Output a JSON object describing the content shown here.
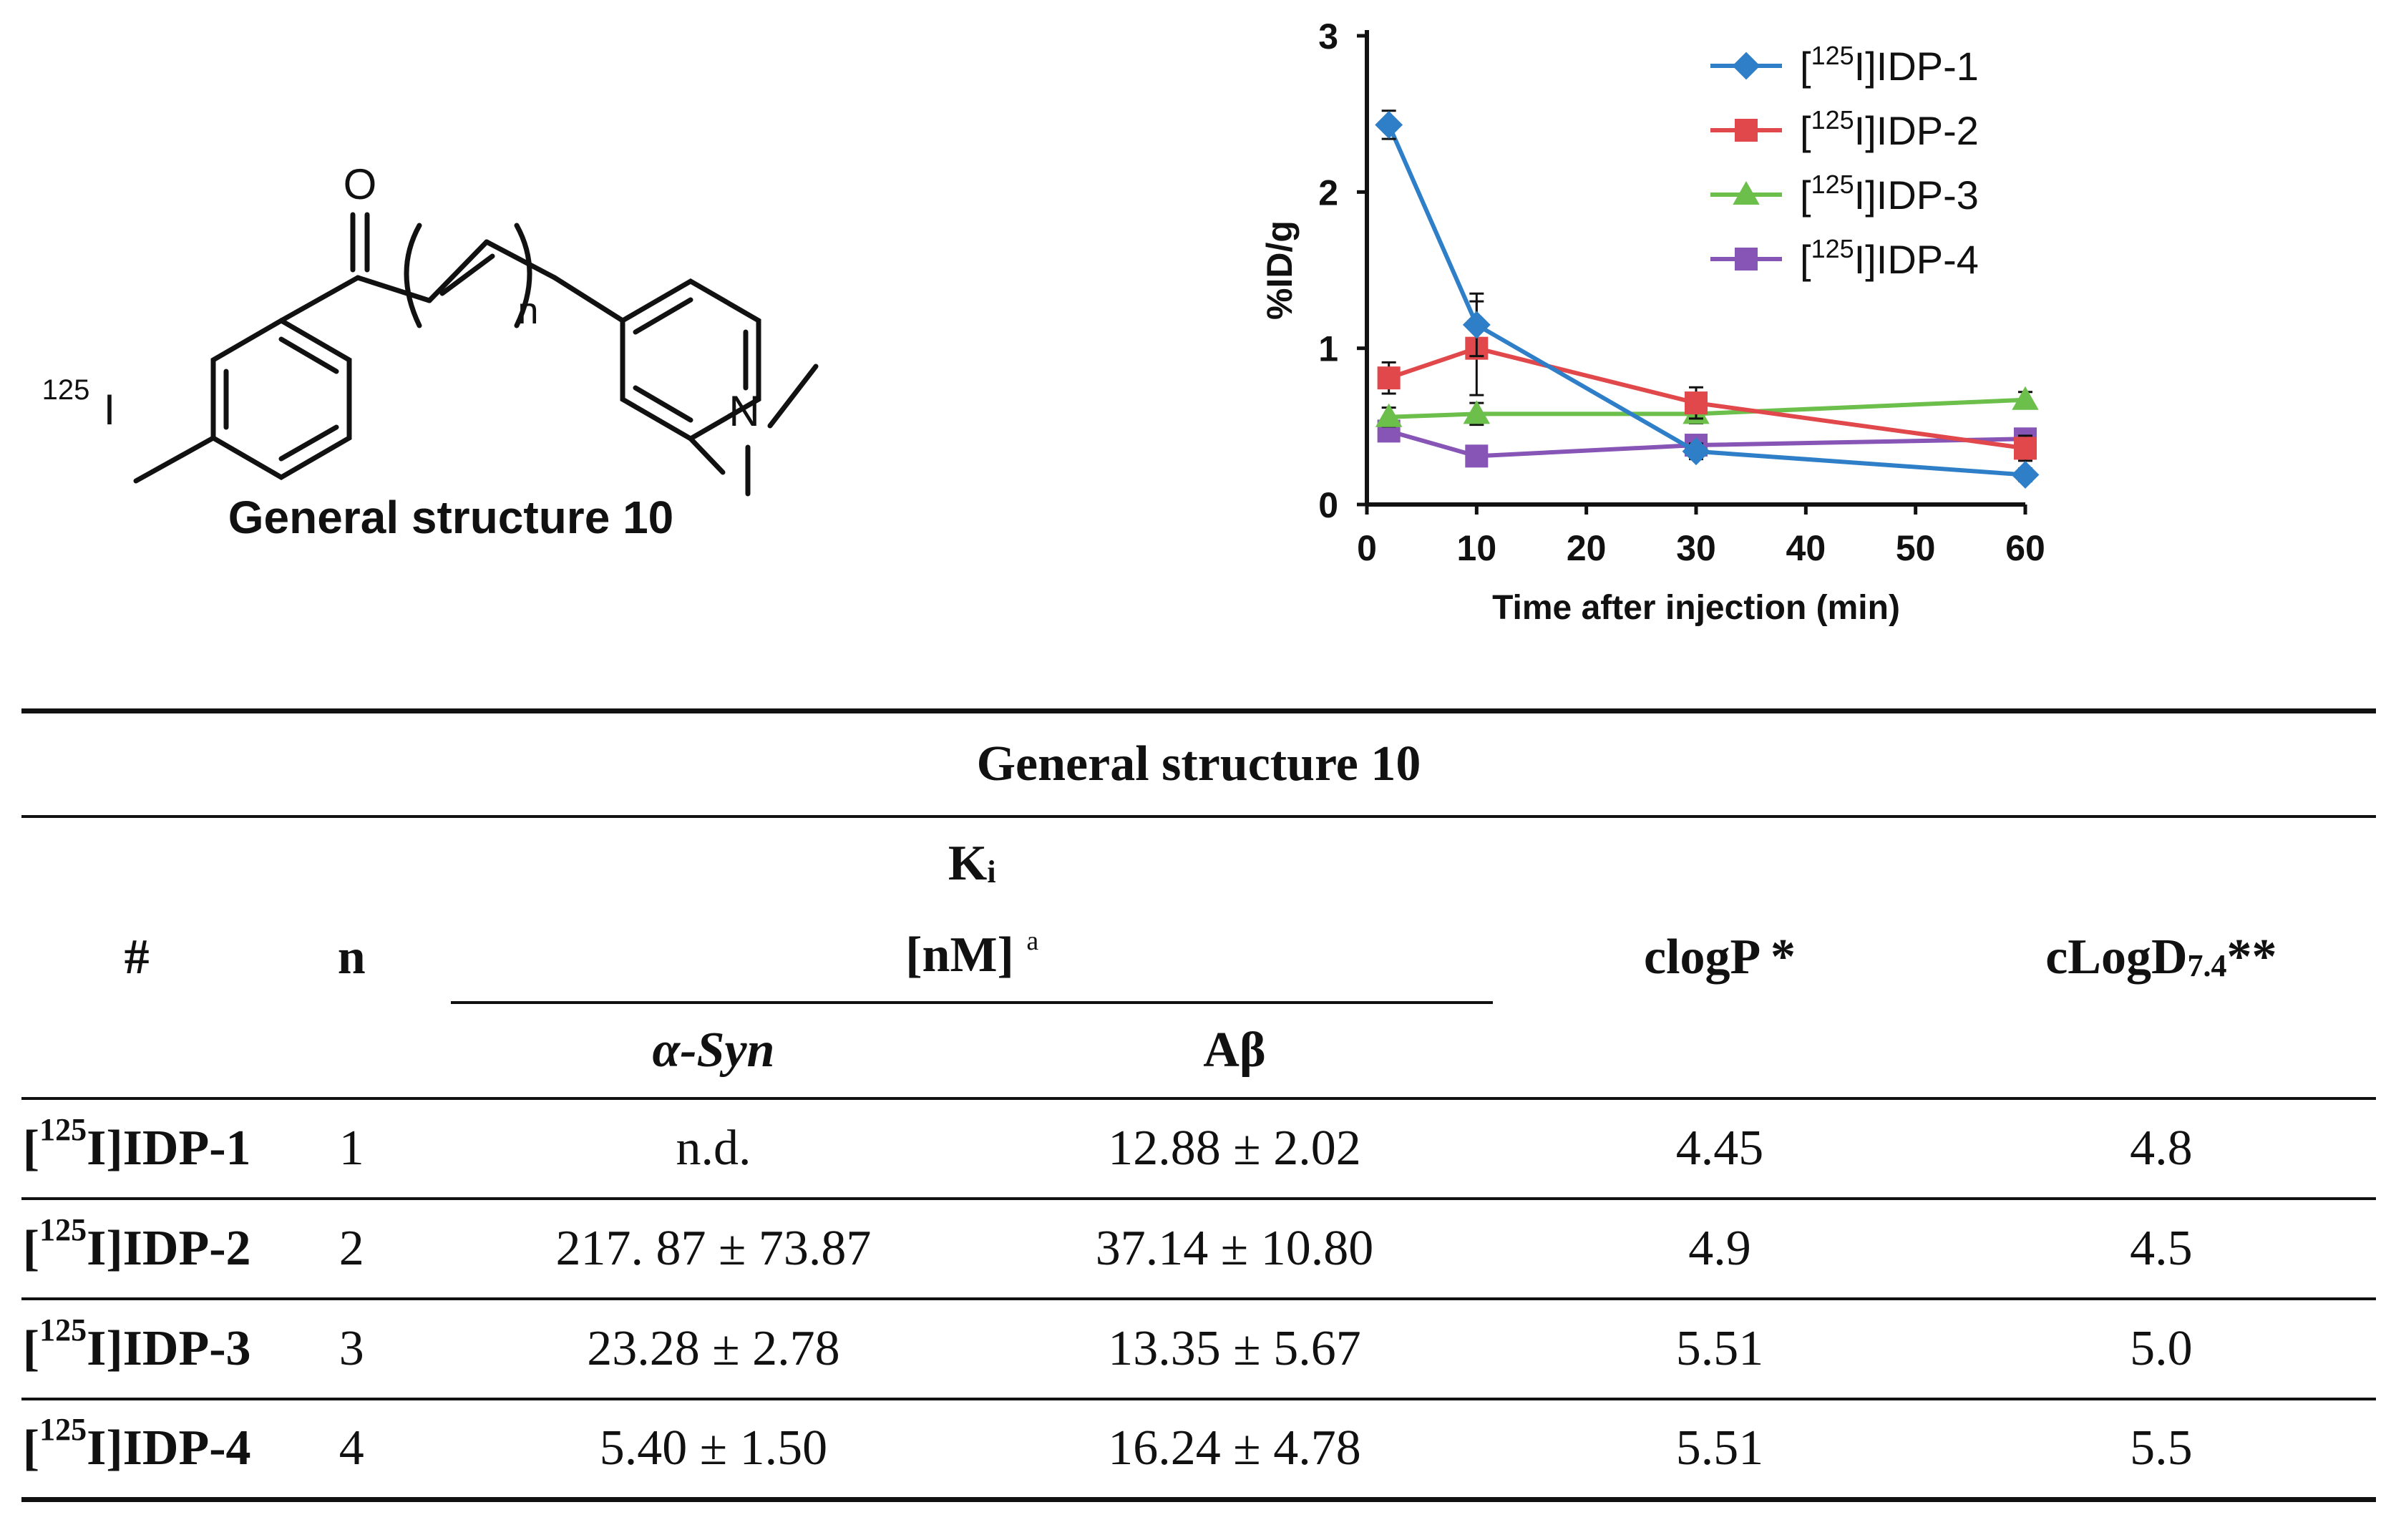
{
  "structure": {
    "caption": "General structure 10",
    "atoms": {
      "oxygen": "O",
      "nitrogen": "N",
      "iodine_mass": "125",
      "iodine": "I",
      "repeat": "n"
    }
  },
  "chart_data": {
    "type": "line",
    "ylabel": "%ID/g",
    "xlabel": "Time after injection (min)",
    "xlim": [
      0,
      60
    ],
    "ylim": [
      0,
      3
    ],
    "xticks": [
      0,
      10,
      20,
      30,
      40,
      50,
      60
    ],
    "yticks": [
      0,
      1,
      2,
      3
    ],
    "legend_position": "top-right",
    "x": [
      2,
      10,
      30,
      60
    ],
    "series": [
      {
        "name_prefix": "[",
        "name_sup": "125",
        "name_suffix": "I]IDP-1",
        "color": "#2F7FC8",
        "marker": "diamond",
        "values": [
          2.43,
          1.15,
          0.34,
          0.19
        ],
        "errors": [
          0.09,
          0.2,
          0.05,
          0.04
        ]
      },
      {
        "name_prefix": "[",
        "name_sup": "125",
        "name_suffix": "I]IDP-2",
        "color": "#E0484B",
        "marker": "square",
        "values": [
          0.81,
          1.0,
          0.65,
          0.36
        ],
        "errors": [
          0.1,
          0.3,
          0.1,
          0.08
        ]
      },
      {
        "name_prefix": "[",
        "name_sup": "125",
        "name_suffix": "I]IDP-3",
        "color": "#6BBF4A",
        "marker": "triangle",
        "values": [
          0.56,
          0.58,
          0.58,
          0.67
        ],
        "errors": [
          0.06,
          0.07,
          0.06,
          0.05
        ]
      },
      {
        "name_prefix": "[",
        "name_sup": "125",
        "name_suffix": "I]IDP-4",
        "color": "#8755B5",
        "marker": "square",
        "values": [
          0.47,
          0.31,
          0.38,
          0.42
        ],
        "errors": [
          0.04,
          0.03,
          0.05,
          0.05
        ]
      }
    ]
  },
  "table": {
    "caption": "General structure 10",
    "headers": {
      "hash": "#",
      "n": "n",
      "ki_main": "K",
      "ki_sub": "i",
      "ki_unit": "[nM] ",
      "ki_note": "a",
      "alpha_syn": "α-Syn",
      "abeta": "Aβ",
      "clogp": "clogP *",
      "clogd_main": "cLogD",
      "clogd_sub": "7.4",
      "clogd_stars": "**"
    },
    "rows": [
      {
        "pre": "[",
        "sup": "125",
        "post": "I]IDP-1",
        "n": "1",
        "asyn": "n.d.",
        "abeta": "12.88 ± 2.02",
        "clogp": "4.45",
        "clogd": "4.8"
      },
      {
        "pre": "[",
        "sup": "125",
        "post": "I]IDP-2",
        "n": "2",
        "asyn": "217. 87 ± 73.87",
        "abeta": "37.14 ± 10.80",
        "clogp": "4.9",
        "clogd": "4.5"
      },
      {
        "pre": "[",
        "sup": "125",
        "post": "I]IDP-3",
        "n": "3",
        "asyn": "23.28 ± 2.78",
        "abeta": "13.35 ± 5.67",
        "clogp": "5.51",
        "clogd": "5.0"
      },
      {
        "pre": "[",
        "sup": "125",
        "post": "I]IDP-4",
        "n": "4",
        "asyn": "5.40 ± 1.50",
        "abeta": "16.24 ± 4.78",
        "clogp": "5.51",
        "clogd": "5.5"
      }
    ]
  }
}
